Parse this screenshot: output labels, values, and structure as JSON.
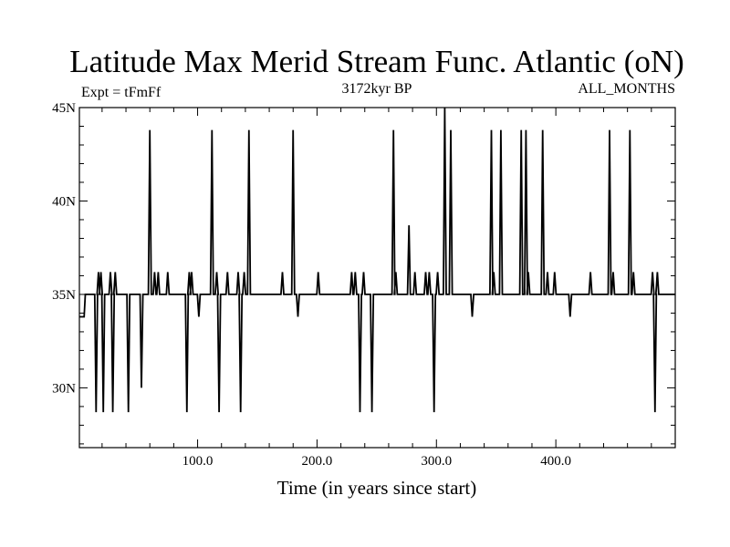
{
  "chart_data": {
    "type": "line",
    "title": "Latitude Max Merid Stream Func. Atlantic (oN)",
    "subtitle_left": "Expt = tFmFf",
    "subtitle_center": "3172kyr BP",
    "subtitle_right": "ALL_MONTHS",
    "xlabel": "Time (in years since start)",
    "ylabel": "",
    "xlim": [
      1,
      500
    ],
    "ylim": [
      26.8,
      45
    ],
    "x_ticks": [
      100,
      200,
      300,
      400
    ],
    "x_tick_labels": [
      "100.0",
      "200.0",
      "300.0",
      "400.0"
    ],
    "y_ticks": [
      30,
      35,
      40,
      45
    ],
    "y_tick_labels": [
      "30N",
      "35N",
      "40N",
      "45N"
    ],
    "baseline": 35,
    "initial": [
      [
        1,
        33.8
      ],
      [
        5,
        33.8
      ],
      [
        6,
        35
      ]
    ],
    "events": [
      [
        15,
        28.7
      ],
      [
        17,
        36.2
      ],
      [
        19,
        36.2
      ],
      [
        21,
        28.7
      ],
      [
        27,
        36.2
      ],
      [
        29,
        28.7
      ],
      [
        31,
        36.2
      ],
      [
        42,
        28.7
      ],
      [
        53,
        30.0
      ],
      [
        60,
        43.8
      ],
      [
        64,
        36.2
      ],
      [
        67,
        36.2
      ],
      [
        75,
        36.2
      ],
      [
        91,
        28.7
      ],
      [
        93,
        36.2
      ],
      [
        95,
        36.2
      ],
      [
        101,
        33.8
      ],
      [
        112,
        43.8
      ],
      [
        116,
        36.2
      ],
      [
        118,
        28.7
      ],
      [
        125,
        36.2
      ],
      [
        134,
        36.2
      ],
      [
        136,
        28.7
      ],
      [
        139,
        36.2
      ],
      [
        143,
        43.8
      ],
      [
        171,
        36.2
      ],
      [
        180,
        43.8
      ],
      [
        184,
        33.8
      ],
      [
        201,
        36.2
      ],
      [
        229,
        36.2
      ],
      [
        232,
        36.2
      ],
      [
        236,
        28.7
      ],
      [
        239,
        36.2
      ],
      [
        246,
        28.7
      ],
      [
        264,
        43.8
      ],
      [
        266,
        36.2
      ],
      [
        277,
        38.7
      ],
      [
        282,
        36.2
      ],
      [
        291,
        36.2
      ],
      [
        294,
        36.2
      ],
      [
        298,
        28.7
      ],
      [
        301,
        36.2
      ],
      [
        307,
        45.0
      ],
      [
        312,
        43.8
      ],
      [
        330,
        33.8
      ],
      [
        346,
        43.8
      ],
      [
        348,
        36.2
      ],
      [
        354,
        43.8
      ],
      [
        371,
        43.8
      ],
      [
        375,
        43.8
      ],
      [
        377,
        36.2
      ],
      [
        389,
        43.8
      ],
      [
        393,
        36.2
      ],
      [
        399,
        36.2
      ],
      [
        412,
        33.8
      ],
      [
        429,
        36.2
      ],
      [
        445,
        43.8
      ],
      [
        448,
        36.2
      ],
      [
        462,
        43.8
      ],
      [
        465,
        36.2
      ],
      [
        481,
        36.2
      ],
      [
        483,
        28.7
      ],
      [
        485,
        36.2
      ]
    ]
  }
}
